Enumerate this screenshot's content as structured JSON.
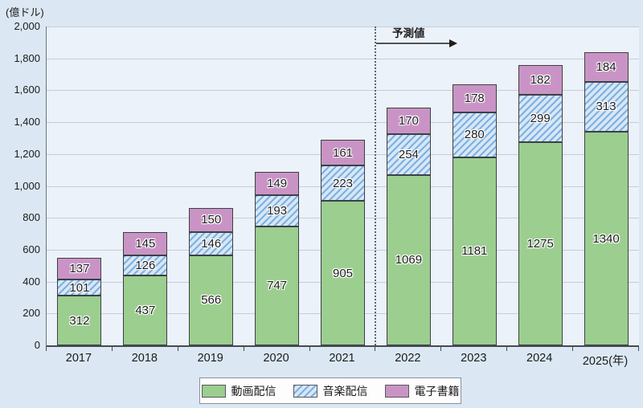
{
  "chart_data": {
    "type": "bar",
    "stacked": true,
    "unit_label": "(億ドル)",
    "categories": [
      "2017",
      "2018",
      "2019",
      "2020",
      "2021",
      "2022",
      "2023",
      "2024",
      "2025(年)"
    ],
    "series": [
      {
        "name": "動画配信",
        "style": "solid",
        "color": "#9bce8f",
        "values": [
          312,
          437,
          566,
          747,
          905,
          1069,
          1181,
          1275,
          1340
        ]
      },
      {
        "name": "音楽配信",
        "style": "hatched",
        "color": "#7fb0df",
        "hatch_bg": "#d6e7f7",
        "values": [
          101,
          126,
          146,
          193,
          223,
          254,
          280,
          299,
          313
        ]
      },
      {
        "name": "電子書籍",
        "style": "solid",
        "color": "#c994c5",
        "values": [
          137,
          145,
          150,
          149,
          161,
          170,
          178,
          182,
          184
        ]
      }
    ],
    "ylim": [
      0,
      2000
    ],
    "y_tick_step": 200,
    "y_tick_labels": [
      "0",
      "200",
      "400",
      "600",
      "800",
      "1,000",
      "1,200",
      "1,400",
      "1,600",
      "1,800",
      "2,000"
    ],
    "grid": true,
    "legend_position": "bottom",
    "forecast": {
      "label": "予測値",
      "start_category_index": 5
    }
  },
  "colors": {
    "page_bg": "#dbe8f4",
    "plot_bg": "#ecf2fa",
    "gridline": "#c6cdd6",
    "axis": "#454b52",
    "bar_border": "#3c4046"
  }
}
